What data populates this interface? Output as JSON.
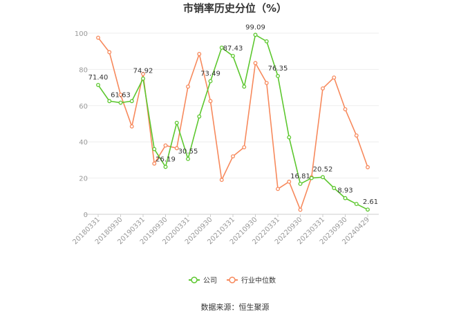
{
  "chart_data": {
    "type": "line",
    "title": "市销率历史分位（%）",
    "xlabel": "",
    "ylabel": "",
    "ylim": [
      0,
      100
    ],
    "yticks": [
      0,
      20,
      40,
      60,
      80,
      100
    ],
    "grid": true,
    "legend_position": "bottom",
    "tick_labels": [
      "20180331",
      "20180930",
      "20190331",
      "20190930",
      "20200331",
      "20200930",
      "20210331",
      "20210930",
      "20220331",
      "20220930",
      "20230331",
      "20230930",
      "20240429"
    ],
    "tick_indices": [
      0,
      2,
      4,
      6,
      8,
      10,
      12,
      14,
      16,
      18,
      20,
      22,
      24
    ],
    "series": [
      {
        "name": "公司",
        "color": "#5cc72e",
        "values": [
          71.4,
          62.5,
          61.63,
          62.5,
          74.92,
          36.0,
          26.19,
          50.5,
          30.55,
          54.0,
          73.49,
          92.0,
          87.43,
          70.5,
          99.09,
          95.5,
          76.35,
          42.5,
          16.81,
          20.0,
          20.52,
          14.5,
          8.93,
          5.7,
          2.61
        ],
        "labels": [
          "71.40",
          null,
          "61.63",
          null,
          "74.92",
          null,
          "26.19",
          null,
          "30.55",
          null,
          "73.49",
          null,
          "87.43",
          null,
          "99.09",
          null,
          "76.35",
          null,
          "16.81",
          null,
          "20.52",
          null,
          "8.93",
          null,
          "2.61"
        ]
      },
      {
        "name": "行业中位数",
        "color": "#f7895c",
        "values": [
          97.5,
          89.5,
          66.0,
          48.5,
          77.5,
          28.0,
          38.0,
          36.5,
          70.5,
          88.5,
          62.5,
          19.0,
          32.0,
          37.0,
          83.5,
          72.5,
          14.0,
          18.0,
          2.5,
          20.5,
          69.5,
          75.5,
          58.0,
          43.5,
          26.0
        ],
        "labels": []
      }
    ]
  },
  "source": "数据来源：恒生聚源"
}
